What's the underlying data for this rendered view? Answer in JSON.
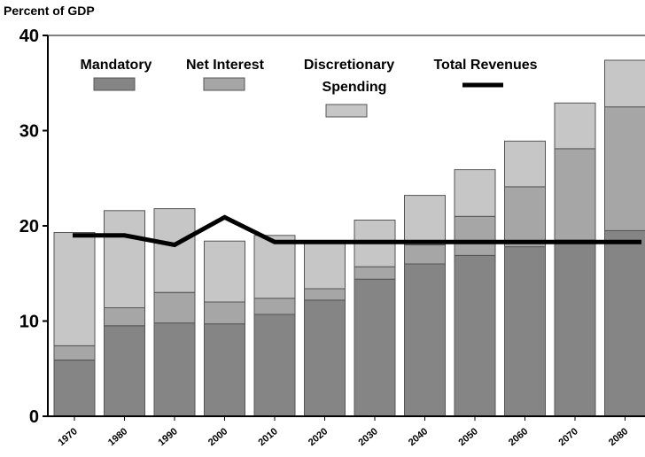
{
  "chart_data": {
    "type": "bar",
    "subtype": "stacked-with-line",
    "ylabel": "Percent of  GDP",
    "ylim": [
      0,
      40
    ],
    "yticks": [
      0,
      10,
      20,
      30,
      40
    ],
    "categories": [
      "1970",
      "1980",
      "1990",
      "2000",
      "2010",
      "2020",
      "2030",
      "2040",
      "2050",
      "2060",
      "2070",
      "2080"
    ],
    "series": [
      {
        "name": "Mandatory",
        "color": "#858585",
        "values": [
          5.9,
          9.5,
          9.8,
          9.7,
          10.7,
          12.2,
          14.4,
          16.0,
          16.9,
          17.8,
          18.5,
          19.5
        ]
      },
      {
        "name": "Net Interest",
        "color": "#a6a6a6",
        "values": [
          1.5,
          1.9,
          3.2,
          2.3,
          1.7,
          1.2,
          1.3,
          2.0,
          4.1,
          6.3,
          9.6,
          13.0
        ]
      },
      {
        "name": "Discretionary Spending",
        "color": "#c6c6c6",
        "values": [
          11.9,
          10.2,
          8.8,
          6.4,
          6.6,
          4.9,
          4.9,
          5.2,
          4.9,
          4.8,
          4.8,
          4.9
        ]
      }
    ],
    "line": {
      "name": "Total Revenues",
      "color": "#000000",
      "values": [
        19.0,
        19.0,
        18.0,
        20.9,
        18.3,
        18.3,
        18.3,
        18.3,
        18.3,
        18.3,
        18.3,
        18.3
      ]
    },
    "legend": {
      "placement": "top-left",
      "labels": [
        "Mandatory",
        "Net Interest",
        "Discretionary",
        "Spending",
        "Total Revenues"
      ]
    },
    "grid": false
  }
}
